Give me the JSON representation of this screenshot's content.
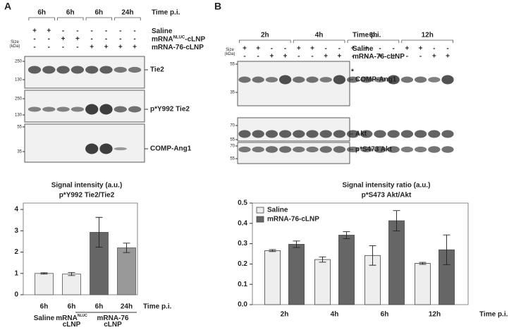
{
  "panel_labels": [
    "A",
    "B"
  ],
  "blot_a": {
    "timepoints": [
      "6h",
      "6h",
      "6h",
      "24h"
    ],
    "time_label": "Time p.i.",
    "size_label": [
      "Size",
      "(kDa)"
    ],
    "rows": [
      {
        "label": [
          "Saline"
        ],
        "signs": [
          "+",
          "+",
          "-",
          "-",
          "-",
          "-",
          "-",
          "-"
        ]
      },
      {
        "label": [
          "mRNA",
          "NLUC",
          "-cLNP"
        ],
        "signs": [
          "-",
          "-",
          "+",
          "+",
          "-",
          "-",
          "-",
          "-"
        ]
      },
      {
        "label": [
          "mRNA-76-cLNP"
        ],
        "signs": [
          "-",
          "-",
          "-",
          "-",
          "+",
          "+",
          "+",
          "+"
        ]
      }
    ],
    "bands": [
      {
        "label": "Tie2",
        "markers": [
          "250",
          "130"
        ]
      },
      {
        "label": "p*Y992 Tie2",
        "markers": [
          "250",
          "130"
        ]
      },
      {
        "label": "COMP-Ang1",
        "markers": [
          "55",
          "35"
        ]
      }
    ]
  },
  "blot_b": {
    "timepoints": [
      "2h",
      "4h",
      "6h",
      "12h"
    ],
    "time_label": "Time p.i.",
    "size_label": [
      "Size",
      "(kDa)"
    ],
    "rows": [
      {
        "label": [
          "Saline"
        ],
        "signs": [
          "+",
          "+",
          "-",
          "-",
          "+",
          "+",
          "-",
          "-",
          "+",
          "+",
          "-",
          "-",
          "+",
          "+",
          "-",
          "-"
        ]
      },
      {
        "label": [
          "mRNA-76-cLNP"
        ],
        "signs": [
          "-",
          "-",
          "+",
          "+",
          "-",
          "-",
          "+",
          "+",
          "-",
          "-",
          "+",
          "+",
          "-",
          "-",
          "+",
          "+"
        ]
      }
    ],
    "asterisk": "*",
    "bands": [
      {
        "label": "COMP-Ang1",
        "markers": [
          "55",
          "35"
        ]
      },
      {
        "label": "Akt",
        "markers": [
          "70",
          "55"
        ]
      },
      {
        "label": "p*S473 Akt",
        "markers": [
          "70",
          "55"
        ]
      }
    ]
  },
  "chart_data": [
    {
      "type": "bar",
      "title": "Signal intensity (a.u.)",
      "subtitle": "p*Y992 Tie2/Tie2",
      "x_label": "Time p.i.",
      "categories": [
        "6h",
        "6h",
        "6h",
        "24h"
      ],
      "values": [
        1.0,
        0.97,
        2.93,
        2.2
      ],
      "errors": [
        0.03,
        0.07,
        0.7,
        0.22
      ],
      "colors": [
        "#eeeeee",
        "#eeeeee",
        "#666666",
        "#999999"
      ],
      "groups": [
        [
          "Saline"
        ],
        [
          "mRNA",
          "NLUC",
          "cLNP"
        ],
        [
          "mRNA-76",
          "cLNP"
        ]
      ],
      "ylim": [
        0,
        4.3
      ],
      "yticks": [
        0,
        1,
        2,
        3,
        4
      ]
    },
    {
      "type": "grouped-bar",
      "title": "Signal intensity ratio (a.u.)",
      "subtitle": "p*S473 Akt/Akt",
      "x_label": "Time p.i.",
      "categories": [
        "2h",
        "4h",
        "6h",
        "12h"
      ],
      "series": [
        {
          "name": "Saline",
          "color": "#eeeeee",
          "values": [
            0.266,
            0.222,
            0.242,
            0.203
          ],
          "errors": [
            0.005,
            0.013,
            0.048,
            0.005
          ]
        },
        {
          "name": "mRNA-76-cLNP",
          "color": "#666666",
          "values": [
            0.297,
            0.342,
            0.413,
            0.27
          ],
          "errors": [
            0.016,
            0.017,
            0.05,
            0.073
          ]
        }
      ],
      "ylim": [
        0,
        0.5
      ],
      "yticks": [
        {
          "value": 0,
          "label": "0.0"
        },
        0.1,
        0.2,
        0.3,
        0.4,
        0.5
      ]
    }
  ]
}
